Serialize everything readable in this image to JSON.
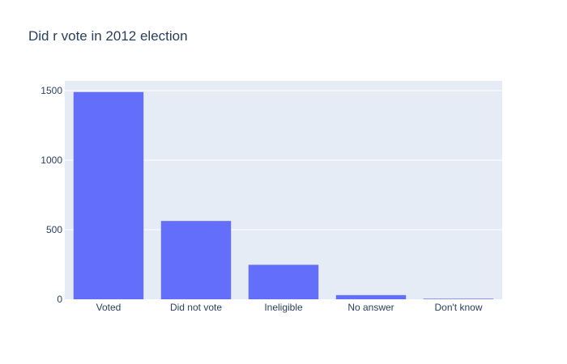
{
  "chart_data": {
    "type": "bar",
    "title": "Did r vote in 2012 election",
    "xlabel": "",
    "ylabel": "",
    "categories": [
      "Voted",
      "Did not vote",
      "Ineligible",
      "No answer",
      "Don't know"
    ],
    "values": [
      1490,
      563,
      248,
      30,
      4
    ],
    "ylim": [
      0,
      1570
    ],
    "yticks": [
      0,
      500,
      1000,
      1500
    ],
    "ytick_labels": [
      "0",
      "500",
      "1000",
      "1500"
    ],
    "grid": true,
    "legend": "none",
    "colors": {
      "bar": "#636efa",
      "plot_background": "#e5ecf6",
      "gridline": "#ffffff",
      "text": "#2a3f5f"
    }
  }
}
